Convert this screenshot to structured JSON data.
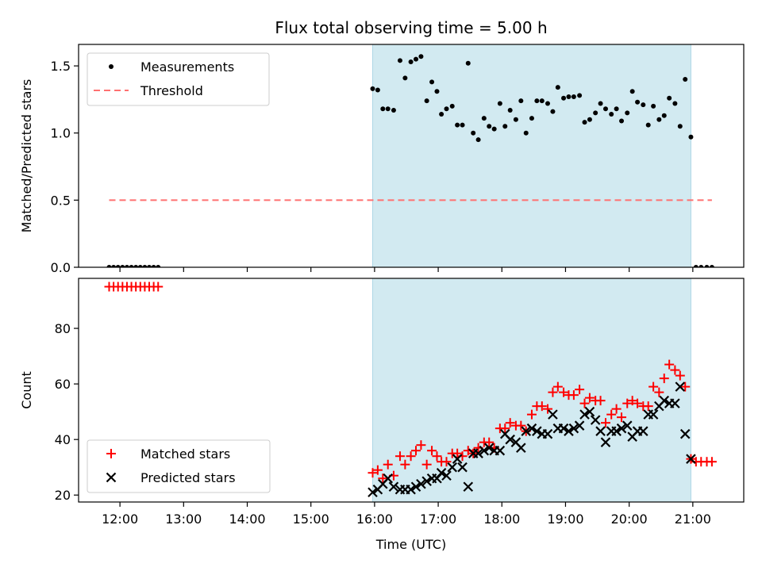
{
  "chart_data": {
    "type": "scatter",
    "title": "Flux total observing time = 5.00 h",
    "xlabel": "Time (UTC)",
    "x_ticks": [
      {
        "value": 12,
        "label": "12:00"
      },
      {
        "value": 13,
        "label": "13:00"
      },
      {
        "value": 14,
        "label": "14:00"
      },
      {
        "value": 15,
        "label": "15:00"
      },
      {
        "value": 16,
        "label": "16:00"
      },
      {
        "value": 17,
        "label": "17:00"
      },
      {
        "value": 18,
        "label": "18:00"
      },
      {
        "value": 19,
        "label": "19:00"
      },
      {
        "value": 20,
        "label": "20:00"
      },
      {
        "value": 21,
        "label": "21:00"
      }
    ],
    "xlim": [
      11.35,
      21.8
    ],
    "shaded_interval": {
      "start": 15.97,
      "end": 20.97,
      "color": "#add8e6"
    },
    "panels": [
      {
        "id": "ratio",
        "ylabel": "Matched/Predicted stars",
        "ylim": [
          0,
          1.66
        ],
        "y_ticks": [
          {
            "value": 0,
            "label": "0.0"
          },
          {
            "value": 0.5,
            "label": "0.5"
          },
          {
            "value": 1.0,
            "label": "1.0"
          },
          {
            "value": 1.5,
            "label": "1.5"
          }
        ],
        "legend": {
          "position": "upper-left",
          "entries": [
            "Measurements",
            "Threshold"
          ]
        },
        "series": [
          {
            "name": "Measurements",
            "kind": "points",
            "color": "#000000",
            "x": [
              11.83,
              11.9,
              11.97,
              12.04,
              12.11,
              12.18,
              12.25,
              12.32,
              12.39,
              12.46,
              12.53,
              12.6,
              15.97,
              16.05,
              16.13,
              16.21,
              16.3,
              16.4,
              16.48,
              16.57,
              16.65,
              16.73,
              16.82,
              16.9,
              16.98,
              17.05,
              17.13,
              17.22,
              17.3,
              17.38,
              17.47,
              17.55,
              17.63,
              17.72,
              17.8,
              17.88,
              17.97,
              18.05,
              18.13,
              18.22,
              18.3,
              18.38,
              18.47,
              18.55,
              18.63,
              18.72,
              18.8,
              18.88,
              18.97,
              19.05,
              19.13,
              19.22,
              19.3,
              19.38,
              19.47,
              19.55,
              19.63,
              19.72,
              19.8,
              19.88,
              19.97,
              20.05,
              20.13,
              20.22,
              20.3,
              20.38,
              20.47,
              20.55,
              20.63,
              20.72,
              20.8,
              20.88,
              20.97,
              21.05,
              21.13,
              21.22,
              21.3
            ],
            "y": [
              0,
              0,
              0,
              0,
              0,
              0,
              0,
              0,
              0,
              0,
              0,
              0,
              1.33,
              1.32,
              1.18,
              1.18,
              1.17,
              1.54,
              1.41,
              1.53,
              1.55,
              1.57,
              1.24,
              1.38,
              1.31,
              1.14,
              1.18,
              1.2,
              1.06,
              1.06,
              1.52,
              1.0,
              0.95,
              1.11,
              1.05,
              1.03,
              1.22,
              1.05,
              1.17,
              1.1,
              1.24,
              1.0,
              1.11,
              1.24,
              1.24,
              1.22,
              1.16,
              1.34,
              1.26,
              1.27,
              1.27,
              1.28,
              1.08,
              1.1,
              1.15,
              1.22,
              1.18,
              1.14,
              1.18,
              1.09,
              1.15,
              1.31,
              1.23,
              1.21,
              1.06,
              1.2,
              1.1,
              1.13,
              1.26,
              1.22,
              1.05,
              1.4,
              0.97,
              0,
              0,
              0,
              0
            ]
          },
          {
            "name": "Threshold",
            "kind": "dashed-line",
            "color": "#ff7070",
            "x": [
              11.83,
              21.3
            ],
            "y": [
              0.5,
              0.5
            ]
          }
        ]
      },
      {
        "id": "counts",
        "ylabel": "Count",
        "ylim": [
          17.5,
          98
        ],
        "y_ticks": [
          {
            "value": 20,
            "label": "20"
          },
          {
            "value": 40,
            "label": "40"
          },
          {
            "value": 60,
            "label": "60"
          },
          {
            "value": 80,
            "label": "80"
          }
        ],
        "legend": {
          "position": "lower-left",
          "entries": [
            "Matched stars",
            "Predicted stars"
          ]
        },
        "series": [
          {
            "name": "Matched stars",
            "kind": "plus",
            "color": "#ff0000",
            "x": [
              11.83,
              11.9,
              11.97,
              12.04,
              12.11,
              12.18,
              12.25,
              12.32,
              12.39,
              12.46,
              12.53,
              12.6,
              15.97,
              16.05,
              16.13,
              16.21,
              16.3,
              16.4,
              16.48,
              16.57,
              16.65,
              16.73,
              16.82,
              16.9,
              16.98,
              17.05,
              17.13,
              17.22,
              17.3,
              17.38,
              17.47,
              17.55,
              17.63,
              17.72,
              17.8,
              17.88,
              17.97,
              18.05,
              18.13,
              18.22,
              18.3,
              18.38,
              18.47,
              18.55,
              18.63,
              18.72,
              18.8,
              18.88,
              18.97,
              19.05,
              19.13,
              19.22,
              19.3,
              19.38,
              19.47,
              19.55,
              19.63,
              19.72,
              19.8,
              19.88,
              19.97,
              20.05,
              20.13,
              20.22,
              20.3,
              20.38,
              20.47,
              20.55,
              20.63,
              20.72,
              20.8,
              20.88,
              20.97,
              21.05,
              21.13,
              21.22,
              21.3
            ],
            "y": [
              95,
              95,
              95,
              95,
              95,
              95,
              95,
              95,
              95,
              95,
              95,
              95,
              28,
              29,
              26,
              31,
              27,
              34,
              31,
              34,
              36,
              38,
              31,
              36,
              34,
              32,
              32,
              35,
              35,
              34,
              36,
              35,
              37,
              39,
              39,
              37,
              44,
              44,
              46,
              45,
              45,
              43,
              49,
              52,
              52,
              51,
              57,
              59,
              57,
              56,
              56,
              58,
              53,
              55,
              54,
              54,
              46,
              49,
              51,
              48,
              53,
              54,
              53,
              52,
              52,
              59,
              57,
              62,
              67,
              65,
              63,
              59,
              33,
              32,
              32,
              32,
              32
            ]
          },
          {
            "name": "Predicted stars",
            "kind": "x",
            "color": "#000000",
            "x": [
              15.97,
              16.05,
              16.13,
              16.21,
              16.3,
              16.4,
              16.48,
              16.57,
              16.65,
              16.73,
              16.82,
              16.9,
              16.98,
              17.05,
              17.13,
              17.22,
              17.3,
              17.38,
              17.47,
              17.55,
              17.63,
              17.72,
              17.8,
              17.88,
              17.97,
              18.05,
              18.13,
              18.22,
              18.3,
              18.38,
              18.47,
              18.55,
              18.63,
              18.72,
              18.8,
              18.88,
              18.97,
              19.05,
              19.13,
              19.22,
              19.3,
              19.38,
              19.47,
              19.55,
              19.63,
              19.72,
              19.8,
              19.88,
              19.97,
              20.05,
              20.13,
              20.22,
              20.3,
              20.38,
              20.47,
              20.55,
              20.63,
              20.72,
              20.8,
              20.88,
              20.97
            ],
            "y": [
              21,
              22,
              24,
              26,
              23,
              22,
              22,
              22,
              23,
              24,
              25,
              26,
              26,
              28,
              27,
              30,
              33,
              30,
              23,
              35,
              35,
              36,
              37,
              36,
              36,
              42,
              40,
              39,
              37,
              43,
              44,
              43,
              42,
              42,
              49,
              44,
              44,
              43,
              44,
              45,
              49,
              50,
              47,
              43,
              39,
              43,
              43,
              44,
              45,
              41,
              43,
              43,
              49,
              49,
              52,
              54,
              53,
              53,
              59,
              42,
              33
            ]
          }
        ]
      }
    ]
  }
}
